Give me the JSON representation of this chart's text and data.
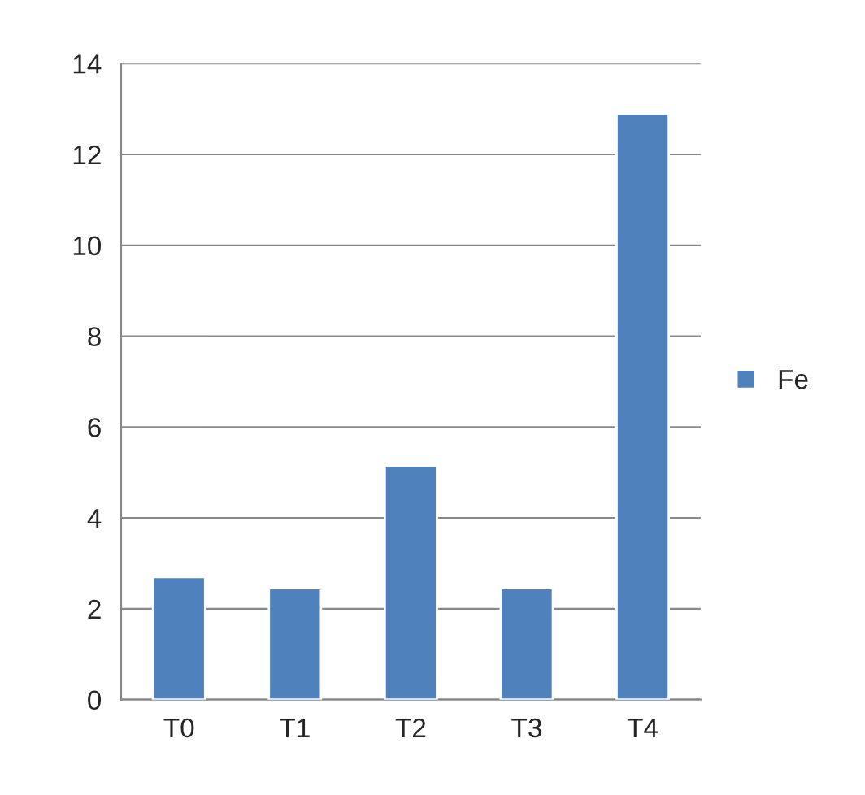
{
  "chart_data": {
    "type": "bar",
    "categories": [
      "T0",
      "T1",
      "T2",
      "T3",
      "T4"
    ],
    "series": [
      {
        "name": "Fe",
        "color": "#4f81bd",
        "values": [
          2.7,
          2.45,
          5.15,
          2.45,
          12.9
        ]
      }
    ],
    "ylim": [
      0,
      14
    ],
    "yticks": [
      0,
      2,
      4,
      6,
      8,
      10,
      12,
      14
    ],
    "grid": "y",
    "legend": "right"
  }
}
